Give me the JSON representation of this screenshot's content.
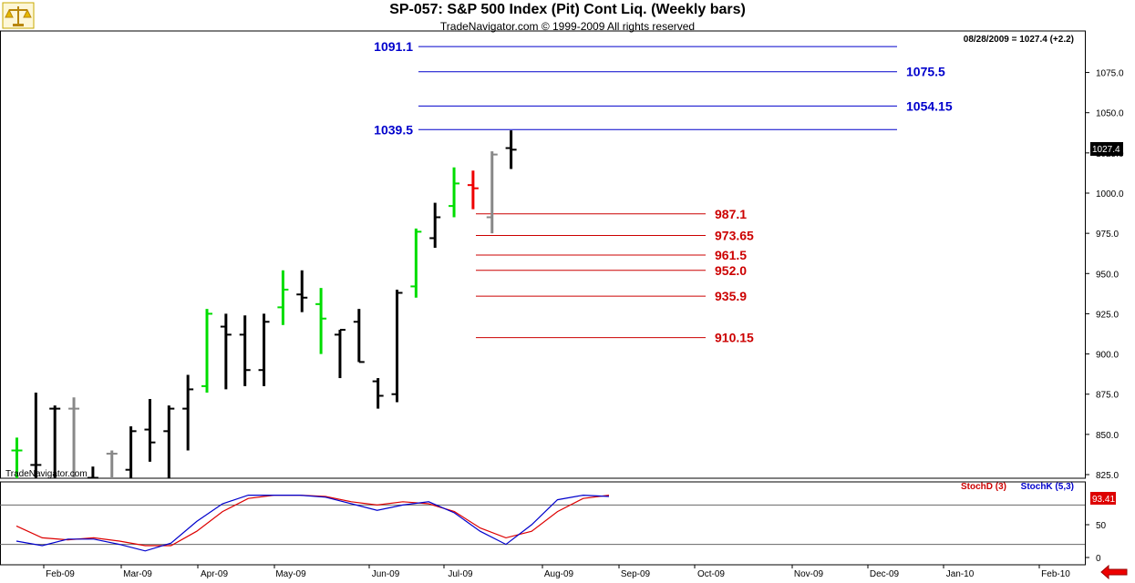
{
  "title": "SP-057:  S&P 500 Index (Pit) Cont Liq.  (Weekly bars)",
  "subtitle": "TradeNavigator.com © 1999-2009 All rights reserved",
  "info": "08/28/2009 = 1027.4 (+2.2)",
  "watermark": "TradeNavigator.com",
  "price_tag": "1027.4",
  "stoch_tag": "93.41",
  "legend": {
    "stochd": "StochD (3)",
    "stochk": "StochK (5,3)"
  },
  "colors": {
    "up": "#000000",
    "green": "#00dd00",
    "gray": "#888888",
    "red": "#ee0000",
    "resistance": "#0000cc",
    "support": "#cc0000"
  },
  "chart_data": {
    "type": "bar",
    "subtype": "ohlc",
    "y_range": [
      822,
      1105
    ],
    "y_ticks": [
      825,
      850,
      875,
      900,
      925,
      950,
      975,
      1000,
      1025,
      1050,
      1075
    ],
    "x_labels": [
      "Feb-09",
      "Mar-09",
      "Apr-09",
      "May-09",
      "Jun-09",
      "Jul-09",
      "Aug-09",
      "Sep-09",
      "Oct-09",
      "Nov-09",
      "Dec-09",
      "Jan-10",
      "Feb-10"
    ],
    "bars": [
      {
        "h": 848,
        "l": 822,
        "o": 840,
        "c": 840,
        "color": "green"
      },
      {
        "h": 876,
        "l": 822,
        "o": 831,
        "c": 831,
        "color": "black"
      },
      {
        "h": 868,
        "l": 822,
        "o": 866,
        "c": 866,
        "color": "black"
      },
      {
        "h": 873,
        "l": 822,
        "o": 866,
        "c": 866,
        "color": "gray"
      },
      {
        "h": 830,
        "l": 822,
        "o": 823,
        "c": 823,
        "color": "black"
      },
      {
        "h": 840,
        "l": 822,
        "o": 838,
        "c": 838,
        "color": "gray"
      },
      {
        "h": 855,
        "l": 822,
        "o": 828,
        "c": 852,
        "color": "black"
      },
      {
        "h": 872,
        "l": 833,
        "o": 853,
        "c": 845,
        "color": "black"
      },
      {
        "h": 868,
        "l": 822,
        "o": 852,
        "c": 866,
        "color": "black"
      },
      {
        "h": 887,
        "l": 840,
        "o": 866,
        "c": 878,
        "color": "black"
      },
      {
        "h": 928,
        "l": 876,
        "o": 880,
        "c": 925,
        "color": "green"
      },
      {
        "h": 925,
        "l": 878,
        "o": 917,
        "c": 912,
        "color": "black"
      },
      {
        "h": 924,
        "l": 880,
        "o": 912,
        "c": 890,
        "color": "black"
      },
      {
        "h": 925,
        "l": 880,
        "o": 890,
        "c": 920,
        "color": "black"
      },
      {
        "h": 952,
        "l": 918,
        "o": 929,
        "c": 940,
        "color": "green"
      },
      {
        "h": 952,
        "l": 926,
        "o": 937,
        "c": 935,
        "color": "black"
      },
      {
        "h": 941,
        "l": 900,
        "o": 931,
        "c": 922,
        "color": "green"
      },
      {
        "h": 915,
        "l": 885,
        "o": 912,
        "c": 915,
        "color": "black"
      },
      {
        "h": 928,
        "l": 895,
        "o": 920,
        "c": 895,
        "color": "black"
      },
      {
        "h": 885,
        "l": 866,
        "o": 883,
        "c": 874,
        "color": "black"
      },
      {
        "h": 940,
        "l": 870,
        "o": 875,
        "c": 938,
        "color": "black"
      },
      {
        "h": 978,
        "l": 935,
        "o": 942,
        "c": 976,
        "color": "green"
      },
      {
        "h": 994,
        "l": 966,
        "o": 972,
        "c": 985,
        "color": "black"
      },
      {
        "h": 1016,
        "l": 985,
        "o": 992,
        "c": 1006,
        "color": "green"
      },
      {
        "h": 1014,
        "l": 990,
        "o": 1005,
        "c": 1003,
        "color": "red"
      },
      {
        "h": 1026,
        "l": 975,
        "o": 985,
        "c": 1024,
        "color": "gray"
      },
      {
        "h": 1039,
        "l": 1015,
        "o": 1028,
        "c": 1027,
        "color": "black"
      }
    ],
    "resistance_levels": [
      {
        "value": 1091.1,
        "label": "1091.1",
        "label_side": "left"
      },
      {
        "value": 1075.5,
        "label": "1075.5",
        "label_side": "right"
      },
      {
        "value": 1054.15,
        "label": "1054.15",
        "label_side": "right"
      },
      {
        "value": 1039.5,
        "label": "1039.5",
        "label_side": "left"
      }
    ],
    "support_levels": [
      {
        "value": 987.1,
        "label": "987.1"
      },
      {
        "value": 973.65,
        "label": "973.65"
      },
      {
        "value": 961.5,
        "label": "961.5"
      },
      {
        "value": 952.0,
        "label": "952.0"
      },
      {
        "value": 935.9,
        "label": "935.9"
      },
      {
        "value": 910.15,
        "label": "910.15"
      }
    ],
    "stoch": {
      "y_range": [
        0,
        100
      ],
      "y_ticks": [
        0,
        50
      ],
      "levels": [
        20,
        80
      ],
      "stochk": [
        25,
        18,
        28,
        28,
        20,
        10,
        22,
        55,
        82,
        95,
        95,
        95,
        92,
        82,
        72,
        80,
        85,
        68,
        40,
        20,
        50,
        88,
        95,
        93
      ],
      "stochd": [
        48,
        30,
        27,
        30,
        25,
        18,
        18,
        40,
        70,
        90,
        95,
        95,
        93,
        85,
        80,
        85,
        82,
        70,
        45,
        30,
        40,
        70,
        90,
        95
      ]
    }
  }
}
